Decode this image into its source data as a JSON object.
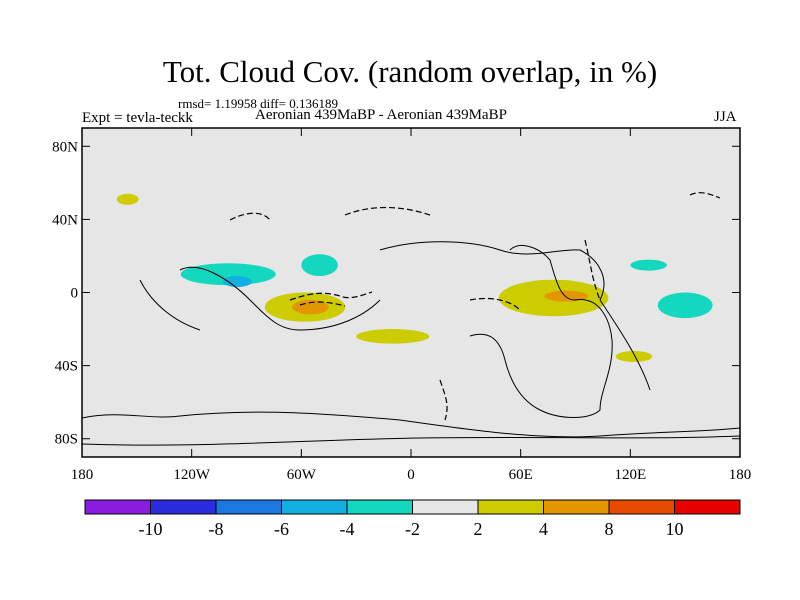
{
  "title": "Tot. Cloud Cov. (random overlap, in %)",
  "stats": "rmsd= 1.19958 diff= 0.136189",
  "expt": "Expt = tevla-teckk",
  "comparison": "Aeronian 439MaBP - Aeronian 439MaBP",
  "season": "JJA",
  "y_ticks": [
    "80N",
    "40N",
    "0",
    "40S",
    "80S"
  ],
  "x_ticks": [
    "180",
    "120W",
    "60W",
    "0",
    "60E",
    "120E",
    "180"
  ],
  "colorbar": {
    "colors": [
      "#8a1be0",
      "#2b2be0",
      "#1c78e0",
      "#12b0e0",
      "#14d7c0",
      "#e6e6e6",
      "#cccc00",
      "#e49600",
      "#e64b00",
      "#e60000"
    ],
    "labels": [
      "-10",
      "-8",
      "-6",
      "-4",
      "-2",
      "2",
      "4",
      "8",
      "10"
    ]
  },
  "map_data": {
    "type": "filled-contour-map",
    "projection": "cylindrical-equidistant",
    "lon_range": [
      -180,
      180
    ],
    "lat_range": [
      -90,
      90
    ],
    "anomaly_regions": [
      {
        "category": "-4 to -2",
        "color": "#14d7c0",
        "center_lon": -100,
        "center_lat": 10,
        "rx": 26,
        "ry": 6
      },
      {
        "category": "-4 to -2",
        "color": "#14d7c0",
        "center_lon": -50,
        "center_lat": 15,
        "rx": 10,
        "ry": 6
      },
      {
        "category": "-4 to -2",
        "color": "#14d7c0",
        "center_lon": 150,
        "center_lat": -7,
        "rx": 15,
        "ry": 7
      },
      {
        "category": "-4 to -2",
        "color": "#14d7c0",
        "center_lon": 130,
        "center_lat": 15,
        "rx": 10,
        "ry": 3
      },
      {
        "category": "-6 to -4",
        "color": "#12b0e0",
        "center_lon": -95,
        "center_lat": 6,
        "rx": 8,
        "ry": 3
      },
      {
        "category": "2 to 4",
        "color": "#cccc00",
        "center_lon": -58,
        "center_lat": -8,
        "rx": 22,
        "ry": 8
      },
      {
        "category": "2 to 4",
        "color": "#cccc00",
        "center_lon": 78,
        "center_lat": -3,
        "rx": 30,
        "ry": 10
      },
      {
        "category": "2 to 4",
        "color": "#cccc00",
        "center_lon": -10,
        "center_lat": -24,
        "rx": 20,
        "ry": 4
      },
      {
        "category": "2 to 4",
        "color": "#cccc00",
        "center_lon": -155,
        "center_lat": 51,
        "rx": 6,
        "ry": 3
      },
      {
        "category": "2 to 4",
        "color": "#cccc00",
        "center_lon": 122,
        "center_lat": -35,
        "rx": 10,
        "ry": 3
      },
      {
        "category": "4 to 8",
        "color": "#e49600",
        "center_lon": -55,
        "center_lat": -8,
        "rx": 10,
        "ry": 4
      },
      {
        "category": "4 to 8",
        "color": "#e49600",
        "center_lon": 85,
        "center_lat": -2,
        "rx": 12,
        "ry": 3
      }
    ]
  }
}
